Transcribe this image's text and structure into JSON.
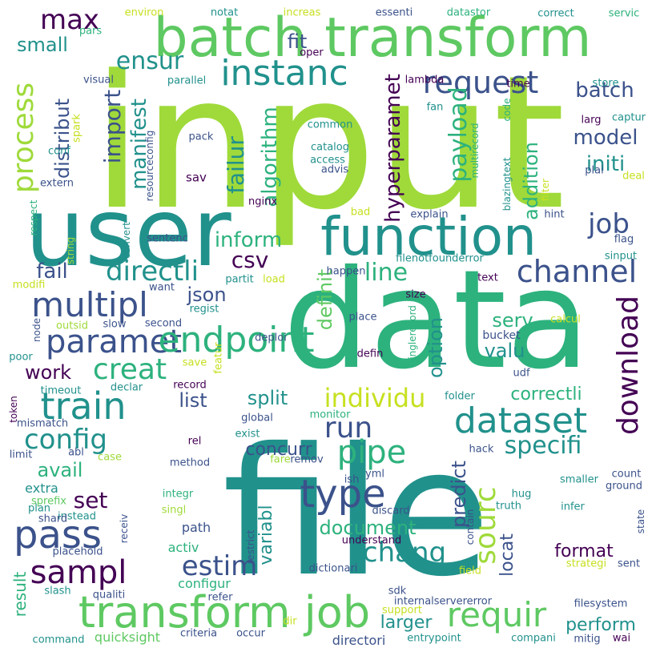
{
  "palette": [
    "#440154",
    "#3b528b",
    "#21918c",
    "#2db27d",
    "#5ec962",
    "#9fda3a",
    "#c7e020"
  ],
  "words": [
    {
      "text": "input"
    },
    {
      "text": "data"
    },
    {
      "text": "file"
    },
    {
      "text": "user"
    },
    {
      "text": "batch transform"
    },
    {
      "text": "function"
    },
    {
      "text": "transform job"
    },
    {
      "text": "instanc"
    },
    {
      "text": "multipl"
    },
    {
      "text": "paramet"
    },
    {
      "text": "pass"
    },
    {
      "text": "train"
    },
    {
      "text": "dataset"
    },
    {
      "text": "request"
    },
    {
      "text": "channel"
    },
    {
      "text": "endpoint"
    },
    {
      "text": "download"
    },
    {
      "text": "creat"
    },
    {
      "text": "directli"
    },
    {
      "text": "config"
    },
    {
      "text": "sampl"
    },
    {
      "text": "requir"
    },
    {
      "text": "type"
    },
    {
      "text": "pipe"
    },
    {
      "text": "sourc"
    },
    {
      "text": "run"
    },
    {
      "text": "individu"
    },
    {
      "text": "chang"
    },
    {
      "text": "max"
    },
    {
      "text": "ensur"
    },
    {
      "text": "process"
    },
    {
      "text": "job"
    },
    {
      "text": "payload"
    },
    {
      "text": "specifi"
    },
    {
      "text": "estim"
    },
    {
      "text": "line"
    },
    {
      "text": "hyperparamet"
    },
    {
      "text": "algorithm"
    },
    {
      "text": "failur"
    },
    {
      "text": "inform"
    },
    {
      "text": "csv"
    },
    {
      "text": "model"
    },
    {
      "text": "initi"
    },
    {
      "text": "batch"
    },
    {
      "text": "import"
    },
    {
      "text": "manifest"
    },
    {
      "text": "distribut"
    },
    {
      "text": "small"
    },
    {
      "text": "fit"
    },
    {
      "text": "serv"
    },
    {
      "text": "valu"
    },
    {
      "text": "option"
    },
    {
      "text": "definit"
    },
    {
      "text": "addition"
    },
    {
      "text": "json"
    },
    {
      "text": "fail"
    },
    {
      "text": "work"
    },
    {
      "text": "list"
    },
    {
      "text": "split"
    },
    {
      "text": "avail"
    },
    {
      "text": "concurr"
    },
    {
      "text": "correctli"
    },
    {
      "text": "predict"
    },
    {
      "text": "set"
    },
    {
      "text": "document"
    },
    {
      "text": "variabl"
    },
    {
      "text": "locat"
    },
    {
      "text": "format"
    },
    {
      "text": "larger"
    },
    {
      "text": "perform"
    },
    {
      "text": "result"
    },
    {
      "text": "extra"
    },
    {
      "text": "activ"
    },
    {
      "text": "path"
    },
    {
      "text": "configur"
    },
    {
      "text": "quicksight"
    },
    {
      "text": "directori"
    },
    {
      "text": "bucket"
    },
    {
      "text": "featur"
    },
    {
      "text": "environ"
    },
    {
      "text": "notat"
    },
    {
      "text": "increas"
    },
    {
      "text": "essenti"
    },
    {
      "text": "datastor"
    },
    {
      "text": "correct"
    },
    {
      "text": "servic"
    },
    {
      "text": "pars"
    },
    {
      "text": "oper"
    },
    {
      "text": "visual"
    },
    {
      "text": "parallel"
    },
    {
      "text": "lambda"
    },
    {
      "text": "time"
    },
    {
      "text": "store"
    },
    {
      "text": "spark"
    },
    {
      "text": "fan"
    },
    {
      "text": "captur"
    },
    {
      "text": "larg"
    },
    {
      "text": "code"
    },
    {
      "text": "common"
    },
    {
      "text": "multirecord"
    },
    {
      "text": "pack"
    },
    {
      "text": "catalog"
    },
    {
      "text": "access"
    },
    {
      "text": "advis"
    },
    {
      "text": "blazingtext"
    },
    {
      "text": "plai"
    },
    {
      "text": "deal"
    },
    {
      "text": "conf"
    },
    {
      "text": "sav"
    },
    {
      "text": "resourceconfig"
    },
    {
      "text": "extern"
    },
    {
      "text": "filter"
    },
    {
      "text": "hint"
    },
    {
      "text": "respect"
    },
    {
      "text": "nginx"
    },
    {
      "text": "bad"
    },
    {
      "text": "explain"
    },
    {
      "text": "flag"
    },
    {
      "text": "string"
    },
    {
      "text": "convert"
    },
    {
      "text": "sentenc"
    },
    {
      "text": "filenotfounderror"
    },
    {
      "text": "sinput"
    },
    {
      "text": "modifi"
    },
    {
      "text": "want"
    },
    {
      "text": "partit"
    },
    {
      "text": "load"
    },
    {
      "text": "happen"
    },
    {
      "text": "text"
    },
    {
      "text": "regist"
    },
    {
      "text": "size"
    },
    {
      "text": "outsid"
    },
    {
      "text": "slow"
    },
    {
      "text": "second"
    },
    {
      "text": "place"
    },
    {
      "text": "singlerecord"
    },
    {
      "text": "calcul"
    },
    {
      "text": "node"
    },
    {
      "text": "poor"
    },
    {
      "text": "deploi"
    },
    {
      "text": "defin"
    },
    {
      "text": "save"
    },
    {
      "text": "udf"
    },
    {
      "text": "timeout"
    },
    {
      "text": "declar"
    },
    {
      "text": "record"
    },
    {
      "text": "token"
    },
    {
      "text": "mismatch"
    },
    {
      "text": "global"
    },
    {
      "text": "monitor"
    },
    {
      "text": "folder"
    },
    {
      "text": "limit"
    },
    {
      "text": "abl"
    },
    {
      "text": "exist"
    },
    {
      "text": "rel"
    },
    {
      "text": "hack"
    },
    {
      "text": "count"
    },
    {
      "text": "case"
    },
    {
      "text": "fare"
    },
    {
      "text": "remov"
    },
    {
      "text": "ground"
    },
    {
      "text": "method"
    },
    {
      "text": "smaller"
    },
    {
      "text": "hug"
    },
    {
      "text": "sprefix"
    },
    {
      "text": "integr"
    },
    {
      "text": "ish"
    },
    {
      "text": "yml"
    },
    {
      "text": "truth"
    },
    {
      "text": "plan"
    },
    {
      "text": "instead"
    },
    {
      "text": "discard"
    },
    {
      "text": "infer"
    },
    {
      "text": "shard"
    },
    {
      "text": "singl"
    },
    {
      "text": "contain"
    },
    {
      "text": "state"
    },
    {
      "text": "receiv"
    },
    {
      "text": "restrict"
    },
    {
      "text": "understand"
    },
    {
      "text": "placehold"
    },
    {
      "text": "dictionari"
    },
    {
      "text": "sent"
    },
    {
      "text": "strategi"
    },
    {
      "text": "field"
    },
    {
      "text": "slash"
    },
    {
      "text": "qualiti"
    },
    {
      "text": "refer"
    },
    {
      "text": "sdk"
    },
    {
      "text": "internalservererror"
    },
    {
      "text": "filesystem"
    },
    {
      "text": "support"
    },
    {
      "text": "dir"
    },
    {
      "text": "command"
    },
    {
      "text": "criteria"
    },
    {
      "text": "occur"
    },
    {
      "text": "entrypoint"
    },
    {
      "text": "compani"
    },
    {
      "text": "mitig"
    },
    {
      "text": "wai"
    }
  ]
}
